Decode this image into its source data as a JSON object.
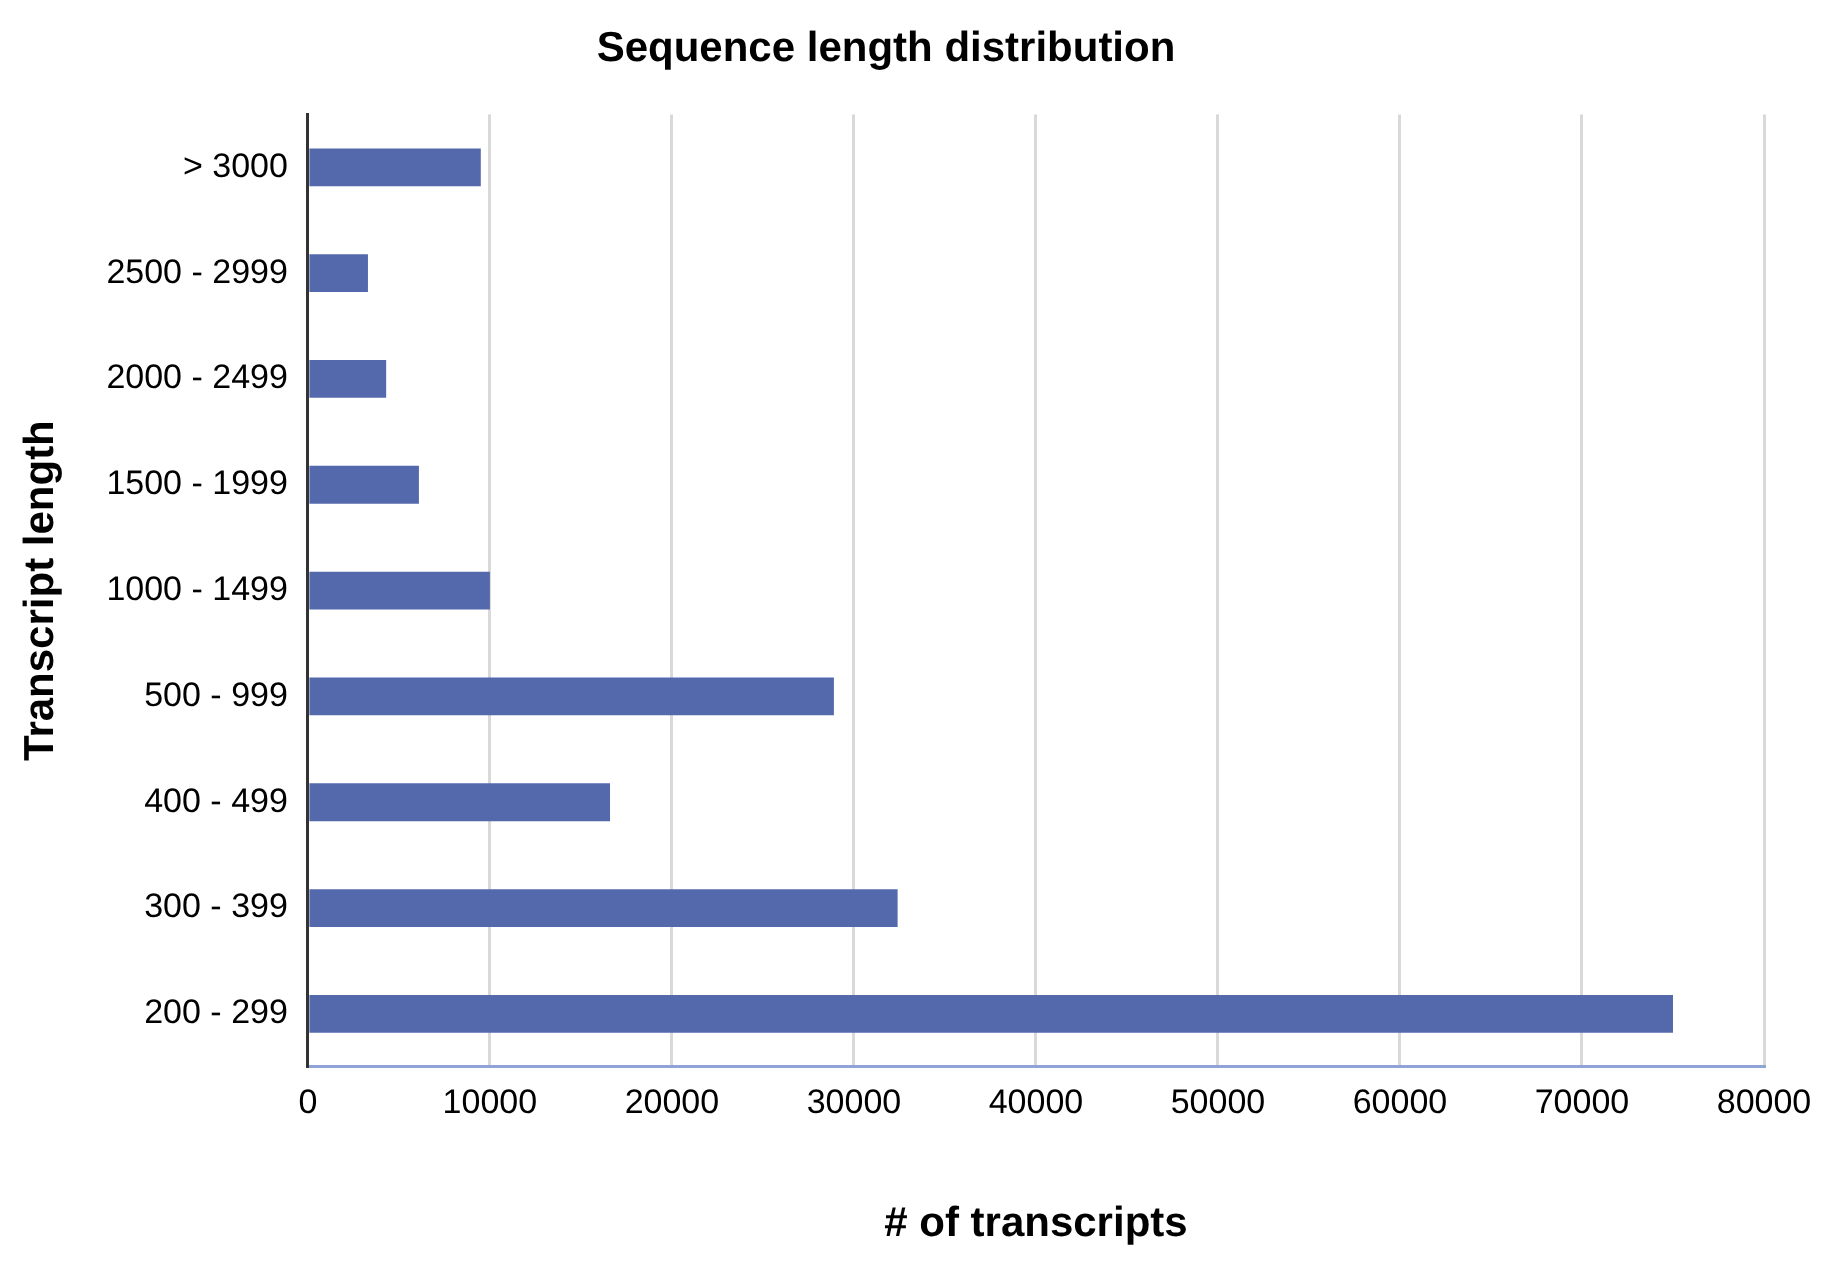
{
  "chart_data": {
    "type": "bar",
    "orientation": "horizontal",
    "title": "Sequence length distribution",
    "xlabel": "# of transcripts",
    "ylabel": "Transcript length",
    "categories": [
      "> 3000",
      "2500 - 2999",
      "2000 - 2499",
      "1500 - 1999",
      "1000 - 1499",
      "500 - 999",
      "400 - 499",
      "300 - 399",
      "200 - 299"
    ],
    "values": [
      9500,
      3300,
      4300,
      6100,
      10000,
      28900,
      16600,
      32400,
      75000
    ],
    "color": "#5469ac",
    "xlim": [
      0,
      80000
    ],
    "xticks": [
      0,
      10000,
      20000,
      30000,
      40000,
      50000,
      60000,
      70000,
      80000
    ],
    "grid": "x",
    "legend": false
  }
}
